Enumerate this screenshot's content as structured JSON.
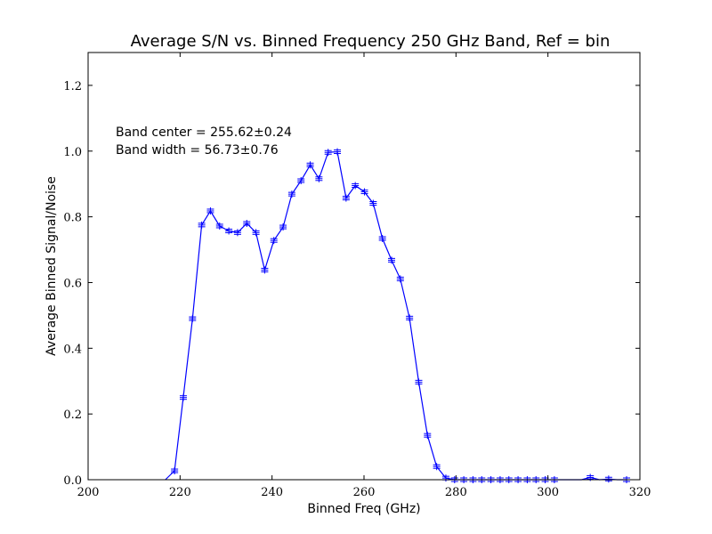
{
  "chart_data": {
    "type": "line",
    "title": "Average S/N vs. Binned Frequency 250 GHz Band, Ref = bin",
    "xlabel": "Binned Freq (GHz)",
    "ylabel": "Average Binned Signal/Noise",
    "xlim": [
      200,
      320
    ],
    "ylim": [
      0.0,
      1.3
    ],
    "x_ticks": [
      200,
      220,
      240,
      260,
      280,
      300,
      320
    ],
    "y_ticks": [
      0.0,
      0.2,
      0.4,
      0.6,
      0.8,
      1.0,
      1.2
    ],
    "x_tick_labels": [
      "200",
      "220",
      "240",
      "260",
      "280",
      "300",
      "320"
    ],
    "y_tick_labels": [
      "0.0",
      "0.2",
      "0.4",
      "0.6",
      "0.8",
      "1.0",
      "1.2"
    ],
    "grid": false,
    "annotations": [
      "Band center = 255.62±0.24",
      "Band width = 56.73±0.76"
    ],
    "series": [
      {
        "color": "#0000ff",
        "marker": "plus-with-errorbar",
        "x": [
          216.8,
          218.8,
          220.7,
          222.7,
          224.7,
          226.6,
          228.6,
          230.6,
          232.5,
          234.5,
          236.5,
          238.4,
          240.4,
          242.4,
          244.3,
          246.3,
          248.3,
          250.2,
          252.2,
          254.2,
          256.1,
          258.1,
          260.1,
          262.0,
          264.0,
          266.0,
          267.9,
          269.9,
          271.9,
          273.8,
          275.8,
          277.8,
          279.7,
          281.7,
          283.7,
          285.6,
          287.6,
          289.6,
          291.5,
          293.5,
          295.5,
          297.4,
          299.4,
          301.4,
          303.3,
          305.3,
          307.3,
          309.2,
          311.2,
          313.2,
          315.1,
          317.1
        ],
        "y": [
          0.0,
          0.027,
          0.25,
          0.49,
          0.775,
          0.818,
          0.772,
          0.757,
          0.752,
          0.78,
          0.752,
          0.638,
          0.728,
          0.769,
          0.869,
          0.91,
          0.958,
          0.916,
          0.996,
          0.998,
          0.857,
          0.895,
          0.876,
          0.841,
          0.734,
          0.668,
          0.611,
          0.492,
          0.297,
          0.135,
          0.04,
          0.005,
          0.0,
          0.0,
          0.0,
          0.0,
          0.0,
          0.0,
          0.0,
          0.0,
          0.0,
          0.0,
          0.0,
          0.0,
          0.0,
          0.0,
          0.0,
          0.007,
          0.0,
          0.002,
          0.0,
          0.0
        ],
        "x_markers": [
          218.8,
          220.7,
          222.7,
          224.7,
          226.6,
          228.6,
          230.6,
          232.5,
          234.5,
          236.5,
          238.4,
          240.4,
          242.4,
          244.3,
          246.3,
          248.3,
          250.2,
          252.2,
          254.2,
          256.1,
          258.1,
          260.1,
          262.0,
          264.0,
          266.0,
          267.9,
          269.9,
          271.9,
          273.8,
          275.8,
          277.8,
          279.7,
          281.7,
          283.7,
          285.6,
          287.6,
          289.6,
          291.5,
          293.5,
          295.5,
          297.4,
          299.4,
          301.4,
          309.2,
          313.2,
          317.1
        ]
      }
    ]
  }
}
